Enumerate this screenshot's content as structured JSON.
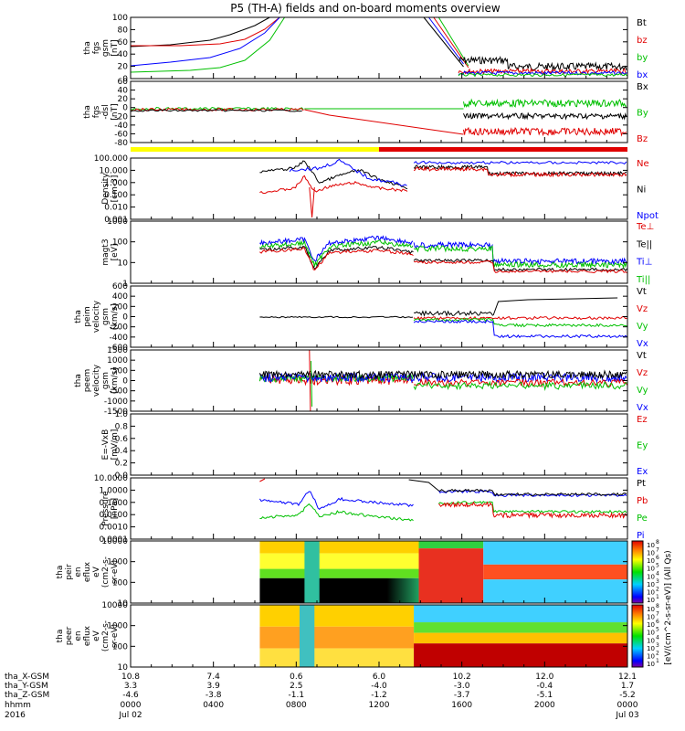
{
  "title": "P5 (TH-A) fields and on-board moments overview",
  "colors": {
    "black": "#000000",
    "red": "#e00000",
    "green": "#00c000",
    "blue": "#0000ff",
    "yellow": "#ffff00"
  },
  "chart_data": {
    "type": "line",
    "x_ticks": [
      "0000",
      "0400",
      "0800",
      "1200",
      "1600",
      "2000",
      "0000"
    ],
    "x_tick_dates": [
      "Jul 02",
      "",
      "",
      "",
      "",
      "",
      "Jul 03"
    ],
    "x_tick_rows": [
      {
        "label": "tha_X-GSM",
        "values": [
          "10.8",
          "7.4",
          "0.6",
          "6.0",
          "10.2",
          "12.0",
          "12.1"
        ]
      },
      {
        "label": "tha_Y-GSM",
        "values": [
          "3.3",
          "3.9",
          "2.5",
          "-4.0",
          "-3.0",
          "-0.4",
          "1.7"
        ]
      },
      {
        "label": "tha_Z-GSM",
        "values": [
          "-4.6",
          "-3.8",
          "-1.1",
          "-1.2",
          "-3.7",
          "-5.1",
          "-5.2"
        ]
      },
      {
        "label": "hhmm",
        "values": [
          "0000",
          "0400",
          "0800",
          "1200",
          "1600",
          "2000",
          "0000"
        ]
      },
      {
        "label": "2016",
        "values": [
          "Jul 02",
          "",
          "",
          "",
          "",
          "",
          "Jul 03"
        ]
      }
    ],
    "mode_bar": [
      {
        "from": "0000",
        "to": "1200",
        "color": "yellow"
      },
      {
        "from": "1200",
        "to": "0000",
        "color": "red"
      }
    ],
    "panels": [
      {
        "ylabel": [
          "tha",
          "fgs",
          "gsm",
          "[nT]"
        ],
        "yticks": [
          "100",
          "80",
          "60",
          "40",
          "20",
          "0"
        ],
        "legend": [
          {
            "name": "Bt",
            "color": "black"
          },
          {
            "name": "bz",
            "color": "red"
          },
          {
            "name": "by",
            "color": "green"
          },
          {
            "name": "bx",
            "color": "blue"
          }
        ]
      },
      {
        "ylabel": [
          "tha",
          "fgs",
          "-dsl",
          "[nT]"
        ],
        "yticks": [
          "60",
          "40",
          "20",
          "0",
          "-20",
          "-40",
          "-60",
          "-80"
        ],
        "legend": [
          {
            "name": "Bx",
            "color": "black"
          },
          {
            "name": "By",
            "color": "green"
          },
          {
            "name": "Bz",
            "color": "red"
          }
        ]
      },
      {
        "ylabel": [
          "Density",
          "[cm-3]"
        ],
        "yticks": [
          "100.000",
          "10.000",
          "1.000",
          "0.100",
          "0.010",
          "0.001"
        ],
        "legend": [
          {
            "name": "Ne",
            "color": "red"
          },
          {
            "name": "Ni",
            "color": "black"
          },
          {
            "name": "Npot",
            "color": "blue"
          }
        ]
      },
      {
        "ylabel": [
          "magt3",
          "[eV]"
        ],
        "yticks": [
          "1000",
          "100",
          "10",
          "1"
        ],
        "legend": [
          {
            "name": "Te⊥",
            "color": "red"
          },
          {
            "name": "Te||",
            "color": "black"
          },
          {
            "name": "Ti⊥",
            "color": "blue"
          },
          {
            "name": "Ti||",
            "color": "green"
          }
        ]
      },
      {
        "ylabel": [
          "tha",
          "peim",
          "velocity",
          "gsm",
          "[km/s]"
        ],
        "yticks": [
          "600",
          "400",
          "200",
          "0",
          "-200",
          "-400",
          "-600"
        ],
        "legend": [
          {
            "name": "Vt",
            "color": "black"
          },
          {
            "name": "Vz",
            "color": "red"
          },
          {
            "name": "Vy",
            "color": "green"
          },
          {
            "name": "Vx",
            "color": "blue"
          }
        ]
      },
      {
        "ylabel": [
          "tha",
          "peem",
          "velocity",
          "gsm",
          "[km/s]"
        ],
        "yticks": [
          "1500",
          "1000",
          "500",
          "0",
          "-500",
          "-1000",
          "-1500"
        ],
        "legend": [
          {
            "name": "Vt",
            "color": "black"
          },
          {
            "name": "Vz",
            "color": "red"
          },
          {
            "name": "Vy",
            "color": "green"
          },
          {
            "name": "Vx",
            "color": "blue"
          }
        ]
      },
      {
        "ylabel": [
          "E=-VxB",
          "[mV/m]"
        ],
        "yticks": [
          "1.0",
          "0.8",
          "0.6",
          "0.4",
          "0.2",
          "0.0"
        ],
        "legend": [
          {
            "name": "Ez",
            "color": "red"
          },
          {
            "name": "Ey",
            "color": "green"
          },
          {
            "name": "Ex",
            "color": "blue"
          }
        ]
      },
      {
        "ylabel": [
          "Pressure",
          "[nPa]"
        ],
        "yticks": [
          "10.0000",
          "1.0000",
          "0.1000",
          "0.0100",
          "0.0010",
          "0.0001"
        ],
        "legend": [
          {
            "name": "Pt",
            "color": "black"
          },
          {
            "name": "Pb",
            "color": "red"
          },
          {
            "name": "Pe",
            "color": "green"
          },
          {
            "name": "Pi",
            "color": "blue"
          }
        ]
      },
      {
        "ylabel": [
          "tha",
          "peir",
          "en",
          "eflux",
          "eV",
          "(cm2-s-",
          "sr-eV)"
        ],
        "yticks": [
          "10000",
          "1000",
          "100",
          "10"
        ],
        "legend": []
      },
      {
        "ylabel": [
          "tha",
          "peer",
          "en",
          "eflux",
          "eV",
          "(cm2-s-",
          "sr-eV)"
        ],
        "yticks": [
          "10000",
          "1000",
          "100",
          "10"
        ],
        "legend": []
      }
    ],
    "colorbar": {
      "exponents": [
        "8",
        "7",
        "6",
        "5",
        "4",
        "3",
        "2",
        "1"
      ],
      "label": "[eV/(cm^2-s-sr-eV)] (All Qs)"
    }
  }
}
